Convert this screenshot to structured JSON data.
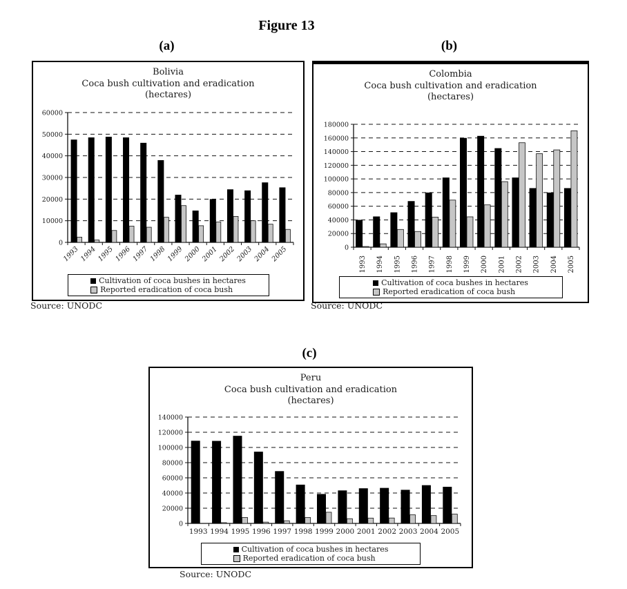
{
  "figure": {
    "title": "Figure 13",
    "panel_tags": [
      "(a)",
      "(b)",
      "(c)"
    ],
    "source": "Source: UNODC"
  },
  "legend": {
    "cultivation": "Cultivation of coca bushes in hectares",
    "eradication": "Reported eradication of coca bush"
  },
  "colors": {
    "cultivation_bar": "#000000",
    "eradication_bar": "#c6c6c6",
    "axis": "#111111",
    "text": "#1a1a1a"
  },
  "chart_data": [
    {
      "type": "bar",
      "title": "Bolivia",
      "subtitle": "Coca bush cultivation and eradication",
      "unit": "(hectares)",
      "categories": [
        "1993",
        "1994",
        "1995",
        "1996",
        "1997",
        "1998",
        "1999",
        "2000",
        "2001",
        "2002",
        "2003",
        "2004",
        "2005"
      ],
      "series": [
        {
          "name": "Cultivation of coca bushes in hectares",
          "color": "#000000",
          "values": [
            47500,
            48500,
            48800,
            48500,
            46000,
            38000,
            22000,
            14700,
            20000,
            24500,
            24000,
            27700,
            25400
          ]
        },
        {
          "name": "Reported eradication of coca bush",
          "color": "#c6c6c6",
          "values": [
            2400,
            1100,
            5500,
            7500,
            7000,
            11600,
            17000,
            7700,
            9400,
            12000,
            10000,
            8400,
            6000
          ]
        }
      ],
      "ylim": [
        0,
        60000
      ],
      "ystep": 10000,
      "grid": "dashed-horizontal",
      "legend_position": "bottom",
      "x_label_rotation": -45
    },
    {
      "type": "bar",
      "title": "Colombia",
      "subtitle": "Coca bush cultivation and eradication",
      "unit": "(hectares)",
      "categories": [
        "1993",
        "1994",
        "1995",
        "1996",
        "1997",
        "1998",
        "1999",
        "2000",
        "2001",
        "2002",
        "2003",
        "2004",
        "2005"
      ],
      "series": [
        {
          "name": "Cultivation of coca bushes in hectares",
          "color": "#000000",
          "values": [
            40000,
            45000,
            51000,
            67500,
            80000,
            102000,
            160000,
            163000,
            145000,
            102000,
            86500,
            80000,
            86500
          ]
        },
        {
          "name": "Reported eradication of coca bush",
          "color": "#c6c6c6",
          "values": [
            1000,
            4900,
            26000,
            23000,
            44000,
            69000,
            44500,
            62000,
            96000,
            153000,
            137000,
            142500,
            170500
          ]
        }
      ],
      "ylim": [
        0,
        180000
      ],
      "ystep": 20000,
      "grid": "dashed-horizontal",
      "legend_position": "bottom",
      "x_label_rotation": -90
    },
    {
      "type": "bar",
      "title": "Peru",
      "subtitle": "Coca bush cultivation and eradication",
      "unit": "(hectares)",
      "categories": [
        "1993",
        "1994",
        "1995",
        "1996",
        "1997",
        "1998",
        "1999",
        "2000",
        "2001",
        "2002",
        "2003",
        "2004",
        "2005"
      ],
      "series": [
        {
          "name": "Cultivation of coca bushes in hectares",
          "color": "#000000",
          "values": [
            108800,
            108600,
            115300,
            94400,
            68800,
            51000,
            38700,
            43400,
            46200,
            46700,
            44200,
            50300,
            48200
          ]
        },
        {
          "name": "Reported eradication of coca bush",
          "color": "#c6c6c6",
          "values": [
            0,
            1000,
            7800,
            1700,
            3500,
            7800,
            14700,
            6200,
            7000,
            7100,
            11300,
            10300,
            12200
          ]
        }
      ],
      "ylim": [
        0,
        140000
      ],
      "ystep": 20000,
      "grid": "dashed-horizontal",
      "legend_position": "bottom",
      "x_label_rotation": 0
    }
  ]
}
